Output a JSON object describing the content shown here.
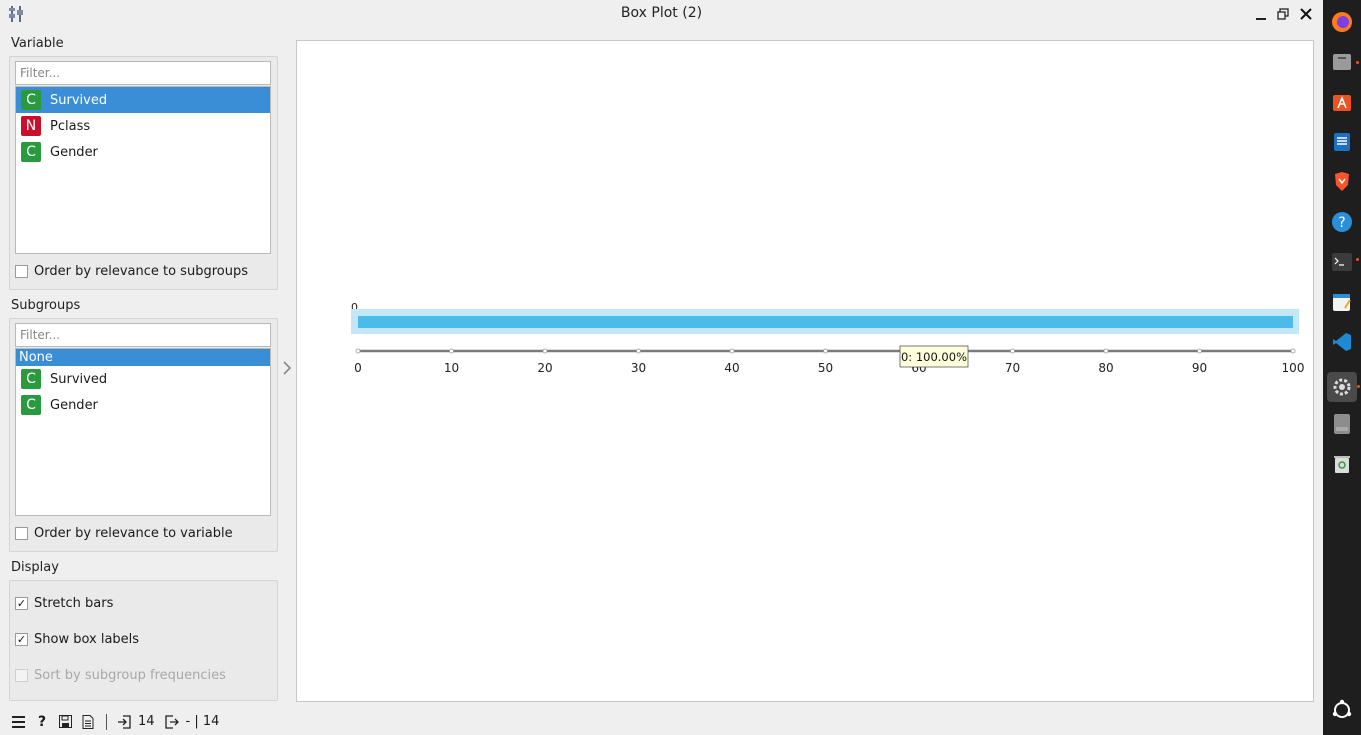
{
  "window": {
    "title": "Box Plot (2)"
  },
  "variable": {
    "label": "Variable",
    "filter_placeholder": "Filter...",
    "items": [
      {
        "badge": "C",
        "label": "Survived",
        "selected": true
      },
      {
        "badge": "N",
        "label": "Pclass",
        "selected": false
      },
      {
        "badge": "C",
        "label": "Gender",
        "selected": false
      }
    ],
    "order_checkbox": {
      "label": "Order by relevance to subgroups",
      "checked": false
    }
  },
  "subgroups": {
    "label": "Subgroups",
    "filter_placeholder": "Filter...",
    "items": [
      {
        "badge": "",
        "label": "None",
        "selected": true
      },
      {
        "badge": "C",
        "label": "Survived",
        "selected": false
      },
      {
        "badge": "C",
        "label": "Gender",
        "selected": false
      }
    ],
    "order_checkbox": {
      "label": "Order by relevance to variable",
      "checked": false
    }
  },
  "display": {
    "label": "Display",
    "stretch_bars": {
      "label": "Stretch bars",
      "checked": true
    },
    "show_box_labels": {
      "label": "Show box labels",
      "checked": true
    },
    "sort_by_freq": {
      "label": "Sort by subgroup frequencies",
      "checked": false,
      "disabled": true
    }
  },
  "status": {
    "input_count": "14",
    "output_text": "- | 14"
  },
  "chart_data": {
    "type": "bar",
    "orientation": "horizontal-stretched",
    "categories": [
      "0"
    ],
    "values": [
      100.0
    ],
    "box_label": "0",
    "tooltip": "0: 100.00%",
    "xlim": [
      0,
      100
    ],
    "xticks": [
      0,
      10,
      20,
      30,
      40,
      50,
      60,
      70,
      80,
      90,
      100
    ],
    "colors": {
      "bar": "#4bbbea",
      "bar_bg": "#c4e7f7"
    }
  },
  "colors": {
    "selection": "#3a8ed5",
    "continuous": "#2a9a3e",
    "discrete": "#c8102e"
  }
}
